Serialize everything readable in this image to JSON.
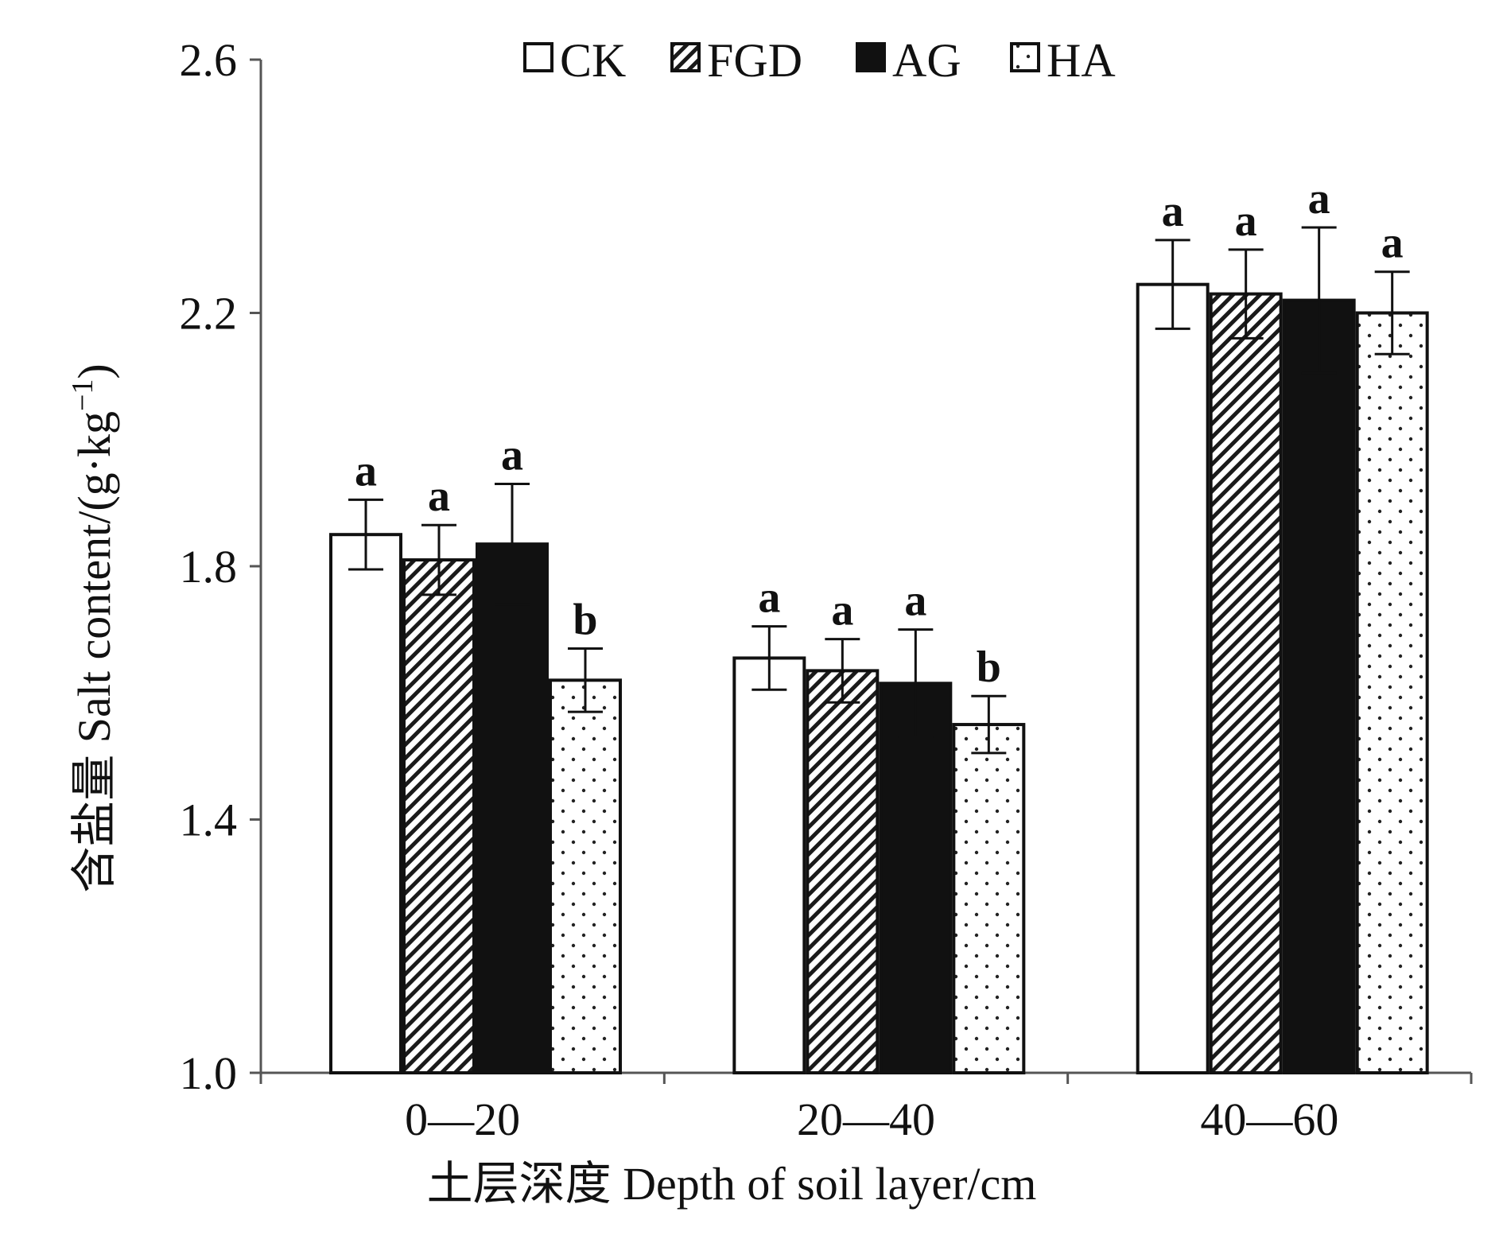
{
  "chart_data": {
    "type": "bar",
    "xlabel": "土层深度 Depth of soil layer/cm",
    "ylabel_main": "含盐量 Salt content/(g·kg",
    "ylabel_sup": "−1",
    "ylabel_close": ")",
    "ylim": [
      1.0,
      2.6
    ],
    "yticks": [
      "1.0",
      "1.4",
      "1.8",
      "2.2",
      "2.6"
    ],
    "categories": [
      "0—20",
      "20—40",
      "40—60"
    ],
    "legend_position": "top",
    "series": [
      {
        "name": "CK",
        "pattern": "white",
        "values": [
          1.85,
          1.655,
          2.245
        ],
        "errors": [
          0.055,
          0.05,
          0.07
        ],
        "letters": [
          "a",
          "a",
          "a"
        ]
      },
      {
        "name": "FGD",
        "pattern": "hatch",
        "values": [
          1.81,
          1.635,
          2.23
        ],
        "errors": [
          0.055,
          0.05,
          0.07
        ],
        "letters": [
          "a",
          "a",
          "a"
        ]
      },
      {
        "name": "AG",
        "pattern": "black",
        "values": [
          1.835,
          1.615,
          2.22
        ],
        "errors": [
          0.095,
          0.085,
          0.115
        ],
        "letters": [
          "a",
          "a",
          "a"
        ]
      },
      {
        "name": "HA",
        "pattern": "dotted",
        "values": [
          1.62,
          1.55,
          2.2
        ],
        "errors": [
          0.05,
          0.045,
          0.065
        ],
        "letters": [
          "b",
          "b",
          "a"
        ]
      }
    ]
  }
}
